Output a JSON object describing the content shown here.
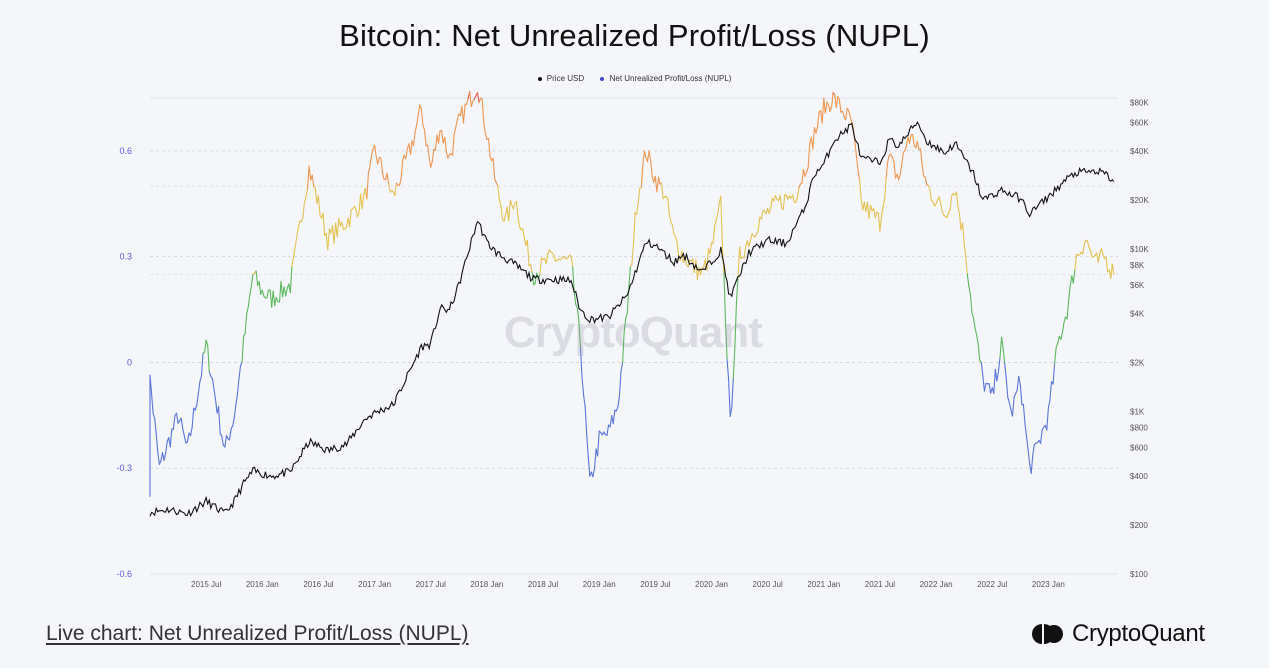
{
  "title": "Bitcoin: Net Unrealized Profit/Loss (NUPL)",
  "legend": [
    {
      "label": "Price USD",
      "color": "#111111"
    },
    {
      "label": "Net Unrealized Profit/Loss (NUPL)",
      "color": "#4a4ac8"
    }
  ],
  "watermark": "CryptoQuant",
  "footer": {
    "live_chart_link": "Live chart: Net Unrealized Profit/Loss (NUPL)",
    "brand_name": "CryptoQuant"
  },
  "colors": {
    "blue": "#5a74d8",
    "green": "#5cb85c",
    "yellow": "#e3c252",
    "orange": "#ee9651",
    "red": "#e35a4f",
    "price": "#111111"
  },
  "chart_data": {
    "type": "line",
    "title": "Bitcoin: Net Unrealized Profit/Loss (NUPL)",
    "x_ticks": [
      "2015 Jul",
      "2016 Jan",
      "2016 Jul",
      "2017 Jan",
      "2017 Jul",
      "2018 Jan",
      "2018 Jul",
      "2019 Jan",
      "2019 Jul",
      "2020 Jan",
      "2020 Jul",
      "2021 Jan",
      "2021 Jul",
      "2022 Jan",
      "2022 Jul",
      "2023 Jan"
    ],
    "left_axis": {
      "ticks": [
        "0.6",
        "0.3",
        "0",
        "-0.3",
        "-0.6"
      ],
      "ylim": [
        -0.6,
        0.75
      ]
    },
    "right_axis": {
      "scale": "log",
      "ticks": [
        "$80K",
        "$60K",
        "$40K",
        "$20K",
        "$10K",
        "$8K",
        "$6K",
        "$4K",
        "$2K",
        "$1K",
        "$800",
        "$600",
        "$400",
        "$200",
        "$100"
      ],
      "ylim": [
        100,
        85000
      ]
    },
    "color_bands": [
      {
        "color": "blue",
        "range": "< 0"
      },
      {
        "color": "green",
        "range": "0 – 0.25"
      },
      {
        "color": "yellow",
        "range": "0.25 – 0.5"
      },
      {
        "color": "orange",
        "range": "0.5 – 0.75"
      },
      {
        "color": "red",
        "range": "> 0.75"
      }
    ],
    "series": [
      {
        "name": "Price USD",
        "axis": "right",
        "points": [
          [
            "2015-01",
            240
          ],
          [
            "2015-03",
            250
          ],
          [
            "2015-05",
            235
          ],
          [
            "2015-07",
            280
          ],
          [
            "2015-09",
            235
          ],
          [
            "2015-10",
            280
          ],
          [
            "2015-11",
            360
          ],
          [
            "2015-12",
            430
          ],
          [
            "2016-02",
            400
          ],
          [
            "2016-04",
            425
          ],
          [
            "2016-06",
            650
          ],
          [
            "2016-08",
            575
          ],
          [
            "2016-10",
            630
          ],
          [
            "2016-12",
            900
          ],
          [
            "2017-01",
            980
          ],
          [
            "2017-03",
            1100
          ],
          [
            "2017-05",
            1900
          ],
          [
            "2017-06",
            2500
          ],
          [
            "2017-07",
            2600
          ],
          [
            "2017-08",
            4300
          ],
          [
            "2017-09",
            4200
          ],
          [
            "2017-10",
            6000
          ],
          [
            "2017-11",
            9500
          ],
          [
            "2017-12",
            15000
          ],
          [
            "2018-01",
            11000
          ],
          [
            "2018-02",
            9500
          ],
          [
            "2018-04",
            8000
          ],
          [
            "2018-06",
            6500
          ],
          [
            "2018-08",
            6500
          ],
          [
            "2018-10",
            6400
          ],
          [
            "2018-11",
            4200
          ],
          [
            "2018-12",
            3700
          ],
          [
            "2019-02",
            3800
          ],
          [
            "2019-04",
            5200
          ],
          [
            "2019-06",
            11000
          ],
          [
            "2019-07",
            10500
          ],
          [
            "2019-09",
            8300
          ],
          [
            "2019-10",
            9200
          ],
          [
            "2019-12",
            7200
          ],
          [
            "2020-02",
            9800
          ],
          [
            "2020-03",
            5000
          ],
          [
            "2020-05",
            9500
          ],
          [
            "2020-07",
            11300
          ],
          [
            "2020-09",
            10800
          ],
          [
            "2020-11",
            18000
          ],
          [
            "2020-12",
            29000
          ],
          [
            "2021-01",
            33000
          ],
          [
            "2021-02",
            46000
          ],
          [
            "2021-04",
            58000
          ],
          [
            "2021-05",
            36000
          ],
          [
            "2021-07",
            34000
          ],
          [
            "2021-08",
            47000
          ],
          [
            "2021-09",
            43000
          ],
          [
            "2021-11",
            61000
          ],
          [
            "2021-12",
            46000
          ],
          [
            "2022-02",
            39000
          ],
          [
            "2022-03",
            45000
          ],
          [
            "2022-05",
            29000
          ],
          [
            "2022-06",
            20000
          ],
          [
            "2022-08",
            23000
          ],
          [
            "2022-10",
            20500
          ],
          [
            "2022-11",
            16500
          ],
          [
            "2023-01",
            21000
          ],
          [
            "2023-03",
            27000
          ],
          [
            "2023-04",
            29500
          ],
          [
            "2023-06",
            30000
          ],
          [
            "2023-07",
            29200
          ],
          [
            "2023-08",
            26000
          ]
        ]
      },
      {
        "name": "Net Unrealized Profit/Loss (NUPL)",
        "axis": "left",
        "points": [
          [
            "2015-01",
            -0.35
          ],
          [
            "2015-01",
            -0.05
          ],
          [
            "2015-02",
            -0.3
          ],
          [
            "2015-04",
            -0.15
          ],
          [
            "2015-05",
            -0.25
          ],
          [
            "2015-06",
            -0.1
          ],
          [
            "2015-07",
            0.05
          ],
          [
            "2015-08",
            -0.1
          ],
          [
            "2015-09",
            -0.25
          ],
          [
            "2015-10",
            -0.15
          ],
          [
            "2015-11",
            0.05
          ],
          [
            "2015-12",
            0.25
          ],
          [
            "2016-01",
            0.2
          ],
          [
            "2016-02",
            0.18
          ],
          [
            "2016-04",
            0.22
          ],
          [
            "2016-06",
            0.55
          ],
          [
            "2016-08",
            0.35
          ],
          [
            "2016-10",
            0.4
          ],
          [
            "2016-12",
            0.47
          ],
          [
            "2017-01",
            0.6
          ],
          [
            "2017-03",
            0.47
          ],
          [
            "2017-05",
            0.62
          ],
          [
            "2017-06",
            0.72
          ],
          [
            "2017-07",
            0.55
          ],
          [
            "2017-08",
            0.67
          ],
          [
            "2017-09",
            0.58
          ],
          [
            "2017-10",
            0.68
          ],
          [
            "2017-12",
            0.79
          ],
          [
            "2018-01",
            0.65
          ],
          [
            "2018-02",
            0.5
          ],
          [
            "2018-03",
            0.4
          ],
          [
            "2018-04",
            0.47
          ],
          [
            "2018-05",
            0.35
          ],
          [
            "2018-06",
            0.25
          ],
          [
            "2018-08",
            0.3
          ],
          [
            "2018-10",
            0.28
          ],
          [
            "2018-11",
            0.05
          ],
          [
            "2018-12",
            -0.35
          ],
          [
            "2019-01",
            -0.22
          ],
          [
            "2019-02",
            -0.2
          ],
          [
            "2019-03",
            -0.12
          ],
          [
            "2019-04",
            0.15
          ],
          [
            "2019-05",
            0.45
          ],
          [
            "2019-06",
            0.6
          ],
          [
            "2019-07",
            0.52
          ],
          [
            "2019-08",
            0.48
          ],
          [
            "2019-09",
            0.35
          ],
          [
            "2019-10",
            0.3
          ],
          [
            "2019-12",
            0.25
          ],
          [
            "2020-01",
            0.32
          ],
          [
            "2020-02",
            0.45
          ],
          [
            "2020-03",
            -0.18
          ],
          [
            "2020-04",
            0.3
          ],
          [
            "2020-06",
            0.4
          ],
          [
            "2020-08",
            0.45
          ],
          [
            "2020-10",
            0.48
          ],
          [
            "2020-11",
            0.55
          ],
          [
            "2020-12",
            0.65
          ],
          [
            "2021-01",
            0.72
          ],
          [
            "2021-02",
            0.75
          ],
          [
            "2021-04",
            0.68
          ],
          [
            "2021-05",
            0.45
          ],
          [
            "2021-07",
            0.4
          ],
          [
            "2021-08",
            0.58
          ],
          [
            "2021-09",
            0.52
          ],
          [
            "2021-10",
            0.64
          ],
          [
            "2021-11",
            0.62
          ],
          [
            "2021-12",
            0.5
          ],
          [
            "2022-02",
            0.42
          ],
          [
            "2022-03",
            0.5
          ],
          [
            "2022-04",
            0.35
          ],
          [
            "2022-05",
            0.12
          ],
          [
            "2022-06",
            -0.05
          ],
          [
            "2022-07",
            -0.1
          ],
          [
            "2022-08",
            0.05
          ],
          [
            "2022-09",
            -0.15
          ],
          [
            "2022-10",
            -0.05
          ],
          [
            "2022-11",
            -0.3
          ],
          [
            "2023-01",
            -0.15
          ],
          [
            "2023-02",
            0.05
          ],
          [
            "2023-03",
            0.15
          ],
          [
            "2023-04",
            0.3
          ],
          [
            "2023-05",
            0.35
          ],
          [
            "2023-06",
            0.28
          ],
          [
            "2023-07",
            0.3
          ],
          [
            "2023-08",
            0.25
          ]
        ]
      }
    ]
  }
}
